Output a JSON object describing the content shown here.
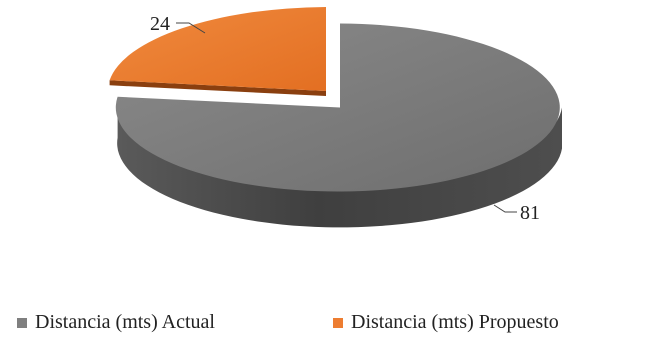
{
  "chart_data": {
    "type": "pie",
    "style": "3d",
    "title": "",
    "categories": [
      "Distancia (mts) Actual",
      "Distancia (mts) Propuesto"
    ],
    "values": [
      81,
      24
    ],
    "colors": [
      "#7f7f7f",
      "#ed7d31"
    ],
    "exploded": "Distancia (mts) Propuesto",
    "data_labels": [
      "81",
      "24"
    ],
    "legend": {
      "position": "bottom"
    }
  }
}
